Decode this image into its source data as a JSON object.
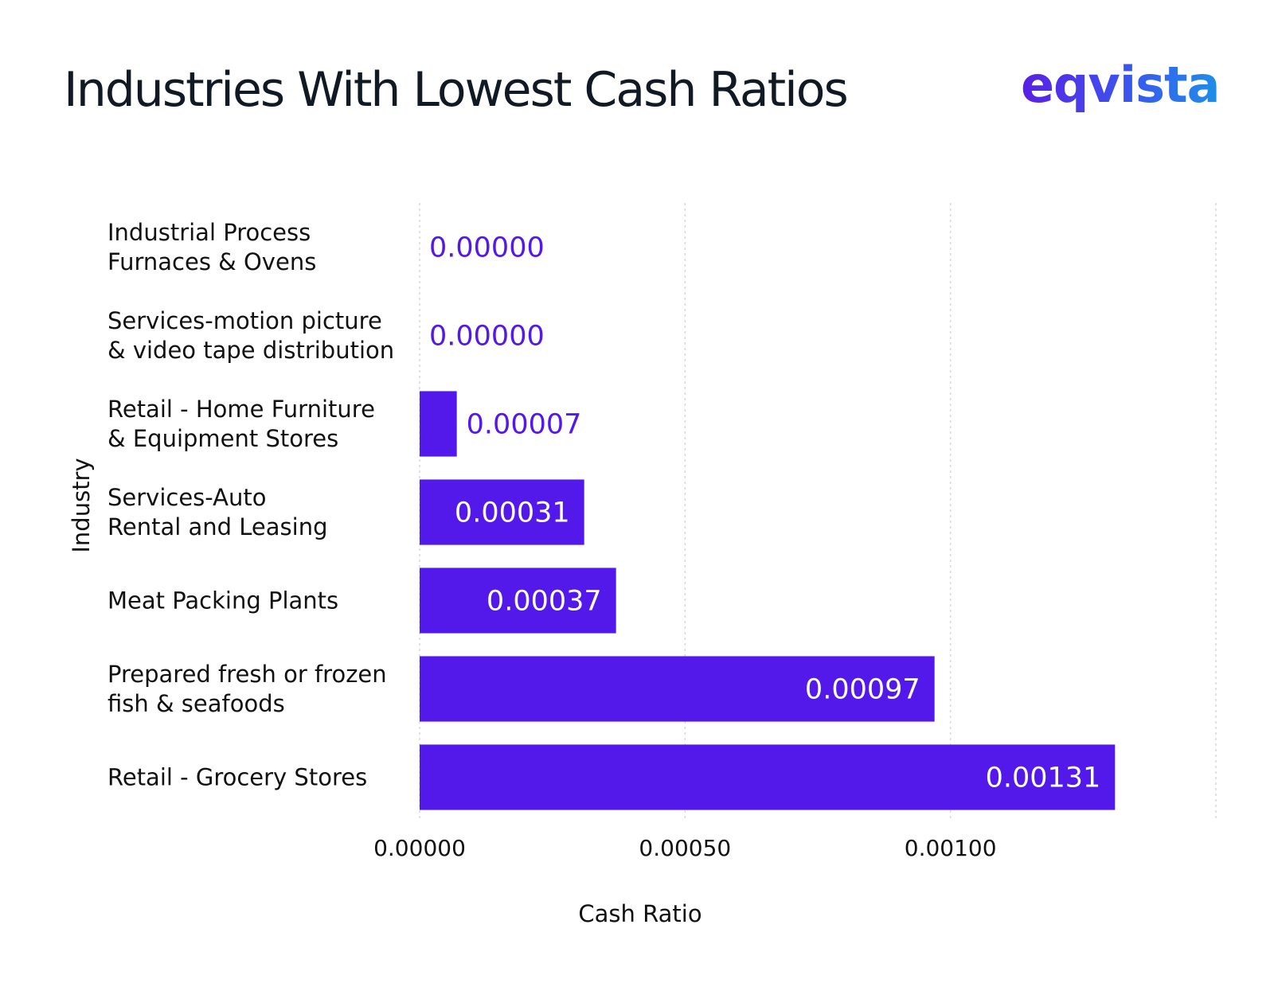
{
  "header": {
    "title": "Industries With Lowest Cash Ratios",
    "logo_text": "eqvista"
  },
  "colors": {
    "bar": "#5319ea",
    "label_inside": "#ffffff",
    "label_outside": "#5319ea",
    "grid": "#d9d9d9"
  },
  "chart_data": {
    "type": "bar",
    "orientation": "horizontal",
    "categories": [
      [
        "Industrial Process",
        "Furnaces & Ovens"
      ],
      [
        "Services-motion picture",
        "& video tape distribution"
      ],
      [
        "Retail - Home Furniture",
        "& Equipment Stores"
      ],
      [
        "Services-Auto",
        "Rental and Leasing"
      ],
      [
        "Meat Packing Plants"
      ],
      [
        "Prepared fresh or frozen",
        "fish & seafoods"
      ],
      [
        "Retail - Grocery Stores"
      ]
    ],
    "values": [
      0.0,
      0.0,
      7e-05,
      0.00031,
      0.00037,
      0.00097,
      0.00131
    ],
    "value_labels": [
      "0.00000",
      "0.00000",
      "0.00007",
      "0.00031",
      "0.00037",
      "0.00097",
      "0.00131"
    ],
    "xlabel": "Cash Ratio",
    "ylabel": "Industry",
    "xlim": [
      0,
      0.0015
    ],
    "xticks": [
      0,
      0.0005,
      0.001
    ],
    "xtick_labels": [
      "0.00000",
      "0.00050",
      "0.00100"
    ],
    "grid": true
  }
}
